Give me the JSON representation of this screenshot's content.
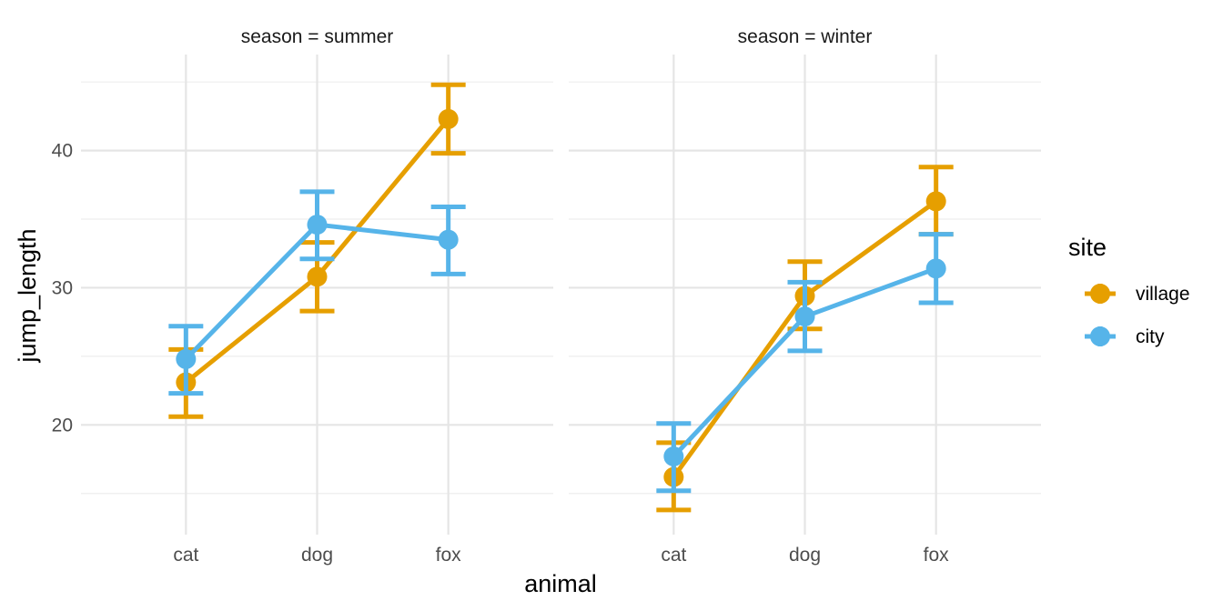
{
  "chart_data": {
    "type": "line",
    "facet_variable": "season",
    "panels": [
      {
        "strip_label": "season = summer",
        "season": "summer"
      },
      {
        "strip_label": "season = winter",
        "season": "winter"
      }
    ],
    "categories": [
      "cat",
      "dog",
      "fox"
    ],
    "xlabel": "animal",
    "ylabel": "jump_length",
    "yticks": [
      20,
      30,
      40
    ],
    "ylim": [
      12,
      47
    ],
    "grid": true,
    "legend": {
      "title": "site",
      "position": "right",
      "entries": [
        "village",
        "city"
      ]
    },
    "series": [
      {
        "name": "village",
        "color": "#E69F00",
        "summer": {
          "values": [
            23.1,
            30.8,
            42.3
          ],
          "lower": [
            20.6,
            28.3,
            39.8
          ],
          "upper": [
            25.5,
            33.3,
            44.8
          ]
        },
        "winter": {
          "values": [
            16.2,
            29.4,
            36.3
          ],
          "lower": [
            13.8,
            27.0,
            33.9
          ],
          "upper": [
            18.7,
            31.9,
            38.8
          ]
        }
      },
      {
        "name": "city",
        "color": "#56B4E9",
        "summer": {
          "values": [
            24.8,
            34.6,
            33.5
          ],
          "lower": [
            22.3,
            32.1,
            31.0
          ],
          "upper": [
            27.2,
            37.0,
            35.9
          ]
        },
        "winter": {
          "values": [
            17.7,
            27.9,
            31.4
          ],
          "lower": [
            15.2,
            25.4,
            28.9
          ],
          "upper": [
            20.1,
            30.4,
            33.9
          ]
        }
      }
    ]
  }
}
